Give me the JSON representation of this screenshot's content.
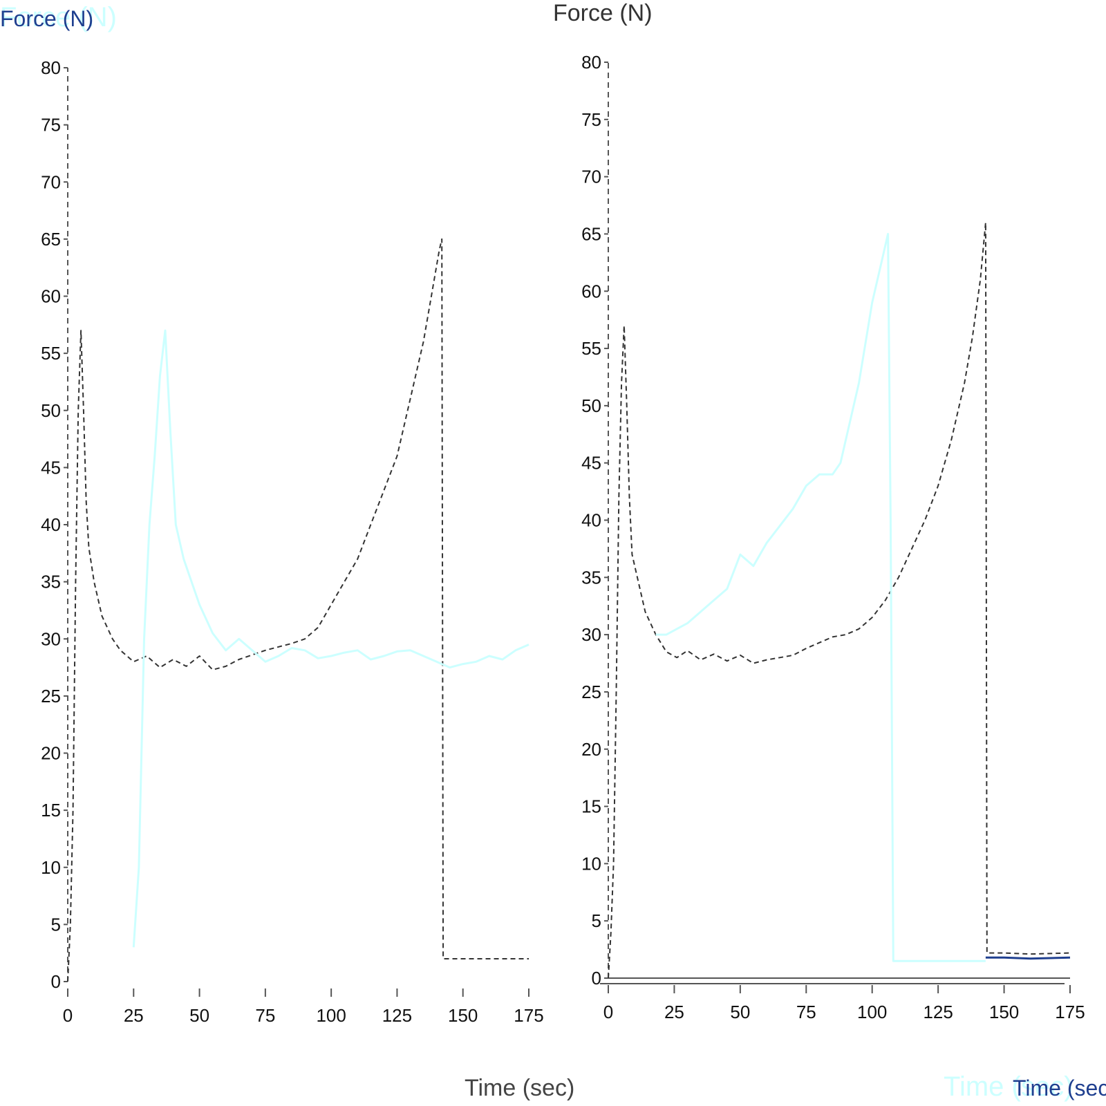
{
  "colors": {
    "black_series": "#333333",
    "cyan_series": "#ccffff",
    "blue_series": "#1f3f8f",
    "axis": "#555555"
  },
  "chart_data": [
    {
      "type": "line",
      "ylabel": "Force (N)",
      "xlabel": "Time (sec)",
      "xlim": [
        0,
        175
      ],
      "ylim": [
        0,
        80
      ],
      "xticks": [
        0,
        25,
        50,
        75,
        100,
        125,
        150,
        175
      ],
      "yticks": [
        0,
        5,
        10,
        15,
        20,
        25,
        30,
        35,
        40,
        45,
        50,
        55,
        60,
        65,
        70,
        75,
        80
      ],
      "grid": false,
      "series": [
        {
          "color": "#333333",
          "style": "dashed",
          "points": [
            [
              0,
              0
            ],
            [
              1,
              5
            ],
            [
              2,
              15
            ],
            [
              3,
              35
            ],
            [
              4,
              50
            ],
            [
              5,
              57
            ],
            [
              6,
              50
            ],
            [
              7,
              42
            ],
            [
              8,
              38
            ],
            [
              10,
              35
            ],
            [
              13,
              32
            ],
            [
              17,
              30
            ],
            [
              20,
              29
            ],
            [
              25,
              28
            ],
            [
              30,
              28.5
            ],
            [
              35,
              27.5
            ],
            [
              40,
              28.2
            ],
            [
              45,
              27.6
            ],
            [
              50,
              28.5
            ],
            [
              55,
              27.3
            ],
            [
              60,
              27.6
            ],
            [
              65,
              28.2
            ],
            [
              70,
              28.6
            ],
            [
              75,
              29
            ],
            [
              80,
              29.3
            ],
            [
              85,
              29.6
            ],
            [
              90,
              30
            ],
            [
              95,
              31
            ],
            [
              100,
              33
            ],
            [
              105,
              35
            ],
            [
              110,
              37
            ],
            [
              115,
              40
            ],
            [
              120,
              43
            ],
            [
              125,
              46
            ],
            [
              130,
              51
            ],
            [
              135,
              56
            ],
            [
              138,
              60
            ],
            [
              141,
              64
            ],
            [
              142,
              65
            ],
            [
              142.5,
              2
            ],
            [
              150,
              2
            ],
            [
              160,
              2
            ],
            [
              175,
              2
            ]
          ]
        },
        {
          "color": "#ccffff",
          "style": "solid",
          "points": [
            [
              25,
              3
            ],
            [
              27,
              10
            ],
            [
              29,
              30
            ],
            [
              31,
              40
            ],
            [
              33,
              46
            ],
            [
              35,
              53
            ],
            [
              37,
              57
            ],
            [
              39,
              48
            ],
            [
              41,
              40
            ],
            [
              44,
              37
            ],
            [
              47,
              35
            ],
            [
              50,
              33
            ],
            [
              55,
              30.5
            ],
            [
              60,
              29
            ],
            [
              65,
              30
            ],
            [
              70,
              29
            ],
            [
              75,
              28
            ],
            [
              80,
              28.5
            ],
            [
              85,
              29.2
            ],
            [
              90,
              29
            ],
            [
              95,
              28.3
            ],
            [
              100,
              28.5
            ],
            [
              105,
              28.8
            ],
            [
              110,
              29
            ],
            [
              115,
              28.2
            ],
            [
              120,
              28.5
            ],
            [
              125,
              28.9
            ],
            [
              130,
              29
            ],
            [
              135,
              28.5
            ],
            [
              140,
              28
            ],
            [
              145,
              27.5
            ],
            [
              150,
              27.8
            ],
            [
              155,
              28
            ],
            [
              160,
              28.5
            ],
            [
              165,
              28.2
            ],
            [
              170,
              29
            ],
            [
              175,
              29.5
            ]
          ]
        }
      ]
    },
    {
      "type": "line",
      "ylabel": "Force (N)",
      "xlabel": "Time (sec)",
      "xlim": [
        0,
        175
      ],
      "ylim": [
        0,
        80
      ],
      "xticks": [
        0,
        25,
        50,
        75,
        100,
        125,
        150,
        175
      ],
      "yticks": [
        0,
        5,
        10,
        15,
        20,
        25,
        30,
        35,
        40,
        45,
        50,
        55,
        60,
        65,
        70,
        75,
        80
      ],
      "grid": false,
      "series": [
        {
          "color": "#333333",
          "style": "dashed",
          "points": [
            [
              0,
              0
            ],
            [
              1,
              4
            ],
            [
              2,
              10
            ],
            [
              3,
              25
            ],
            [
              4,
              42
            ],
            [
              5,
              52
            ],
            [
              6,
              57
            ],
            [
              7,
              50
            ],
            [
              8,
              42
            ],
            [
              9,
              37
            ],
            [
              11,
              35
            ],
            [
              14,
              32
            ],
            [
              18,
              30
            ],
            [
              22,
              28.5
            ],
            [
              26,
              28
            ],
            [
              30,
              28.6
            ],
            [
              35,
              27.8
            ],
            [
              40,
              28.3
            ],
            [
              45,
              27.7
            ],
            [
              50,
              28.2
            ],
            [
              55,
              27.5
            ],
            [
              60,
              27.8
            ],
            [
              65,
              28
            ],
            [
              70,
              28.2
            ],
            [
              75,
              28.8
            ],
            [
              80,
              29.3
            ],
            [
              85,
              29.8
            ],
            [
              90,
              30
            ],
            [
              95,
              30.5
            ],
            [
              100,
              31.5
            ],
            [
              105,
              33
            ],
            [
              110,
              35
            ],
            [
              115,
              37.5
            ],
            [
              120,
              40
            ],
            [
              125,
              43
            ],
            [
              130,
              47
            ],
            [
              135,
              52
            ],
            [
              138,
              56
            ],
            [
              141,
              61
            ],
            [
              143,
              66
            ],
            [
              143.5,
              2.2
            ],
            [
              150,
              2.2
            ],
            [
              160,
              2.1
            ],
            [
              175,
              2.2
            ]
          ]
        },
        {
          "color": "#ccffff",
          "style": "solid",
          "points": [
            [
              18,
              30
            ],
            [
              22,
              30
            ],
            [
              26,
              30.5
            ],
            [
              30,
              31
            ],
            [
              35,
              32
            ],
            [
              40,
              33
            ],
            [
              45,
              34
            ],
            [
              50,
              37
            ],
            [
              55,
              36
            ],
            [
              60,
              38
            ],
            [
              65,
              39.5
            ],
            [
              70,
              41
            ],
            [
              75,
              43
            ],
            [
              80,
              44
            ],
            [
              85,
              44
            ],
            [
              88,
              45
            ],
            [
              90,
              47
            ],
            [
              95,
              52
            ],
            [
              100,
              59
            ],
            [
              104,
              63
            ],
            [
              106,
              65
            ],
            [
              107,
              40
            ],
            [
              108,
              1.5
            ],
            [
              120,
              1.5
            ],
            [
              130,
              1.5
            ],
            [
              143,
              1.5
            ]
          ]
        },
        {
          "color": "#1f3f8f",
          "style": "solid",
          "points": [
            [
              143,
              1.8
            ],
            [
              150,
              1.8
            ],
            [
              160,
              1.7
            ],
            [
              175,
              1.8
            ]
          ]
        }
      ]
    }
  ]
}
